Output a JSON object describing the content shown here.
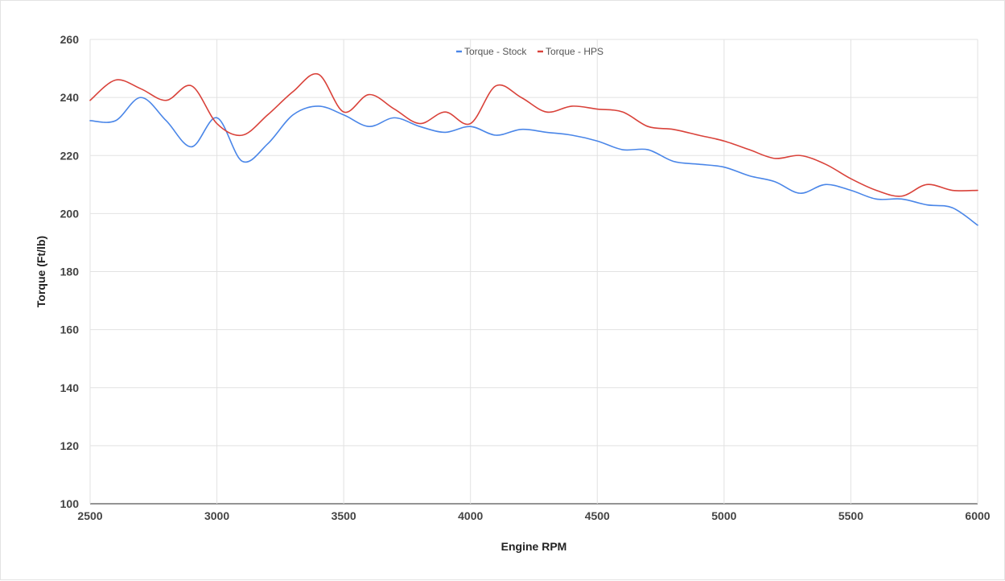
{
  "chart_data": {
    "type": "line",
    "title": "",
    "xlabel": "Engine RPM",
    "ylabel": "Torque (Ft/lb)",
    "xlim": [
      2500,
      6000
    ],
    "ylim": [
      100,
      260
    ],
    "x_ticks": [
      2500,
      3000,
      3500,
      4000,
      4500,
      5000,
      5500,
      6000
    ],
    "y_ticks": [
      100,
      120,
      140,
      160,
      180,
      200,
      220,
      240,
      260
    ],
    "grid": true,
    "legend_position": "top",
    "x": [
      2500,
      2600,
      2700,
      2800,
      2900,
      3000,
      3100,
      3200,
      3300,
      3400,
      3500,
      3600,
      3700,
      3800,
      3900,
      4000,
      4100,
      4200,
      4300,
      4400,
      4500,
      4600,
      4700,
      4800,
      4900,
      5000,
      5100,
      5200,
      5300,
      5400,
      5500,
      5600,
      5700,
      5800,
      5900,
      6000
    ],
    "series": [
      {
        "name": "Torque - Stock",
        "color": "#4a86e8",
        "values": [
          232,
          232,
          240,
          232,
          223,
          233,
          218,
          224,
          234,
          237,
          234,
          230,
          233,
          230,
          228,
          230,
          227,
          229,
          228,
          227,
          225,
          222,
          222,
          218,
          217,
          216,
          213,
          211,
          207,
          210,
          208,
          205,
          205,
          203,
          202,
          196
        ]
      },
      {
        "name": "Torque - HPS",
        "color": "#d9423a",
        "values": [
          239,
          246,
          243,
          239,
          244,
          231,
          227,
          234,
          242,
          248,
          235,
          241,
          236,
          231,
          235,
          231,
          244,
          240,
          235,
          237,
          236,
          235,
          230,
          229,
          227,
          225,
          222,
          219,
          220,
          217,
          212,
          208,
          206,
          210,
          208,
          208
        ]
      }
    ]
  }
}
